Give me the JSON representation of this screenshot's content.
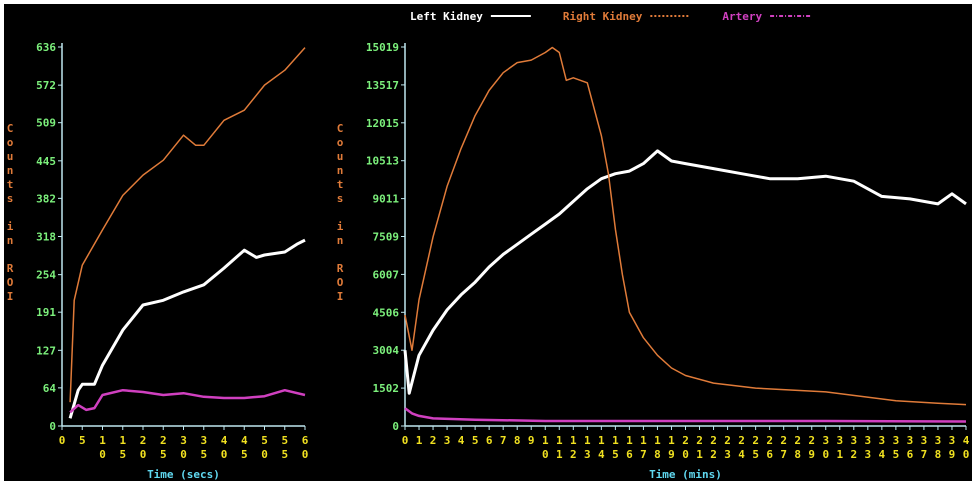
{
  "chart_data": [
    {
      "type": "line",
      "ylabel": "Counts in ROI",
      "xlabel": "Time (secs)",
      "ylim": [
        0,
        636
      ],
      "yticks": [
        0,
        64,
        127,
        191,
        254,
        318,
        382,
        445,
        509,
        572,
        636
      ],
      "xlim": [
        0,
        60
      ],
      "xticks": [
        0,
        5,
        10,
        15,
        20,
        25,
        30,
        35,
        40,
        45,
        50,
        55,
        60
      ],
      "series": [
        {
          "color": "#ffffff",
          "x": [
            2,
            4,
            5,
            8,
            10,
            15,
            20,
            25,
            30,
            35,
            40,
            45,
            48,
            50,
            55,
            58,
            60
          ],
          "values": [
            13,
            60,
            70,
            70,
            102,
            161,
            203,
            211,
            225,
            237,
            265,
            295,
            283,
            287,
            292,
            305,
            312
          ]
        },
        {
          "color": "#e07b39",
          "x": [
            2,
            3,
            5,
            10,
            15,
            20,
            25,
            30,
            33,
            35,
            40,
            45,
            50,
            55,
            60
          ],
          "values": [
            40,
            211,
            270,
            329,
            387,
            421,
            446,
            488,
            471,
            471,
            513,
            530,
            572,
            597,
            635
          ]
        },
        {
          "color": "#d040c0",
          "x": [
            2,
            4,
            6,
            8,
            10,
            15,
            20,
            25,
            30,
            35,
            40,
            45,
            50,
            55,
            60
          ],
          "values": [
            23,
            35,
            27,
            30,
            52,
            60,
            57,
            52,
            55,
            49,
            47,
            47,
            50,
            60,
            52
          ]
        }
      ]
    },
    {
      "type": "line",
      "ylabel": "Counts in ROI",
      "xlabel": "Time (mins)",
      "ylim": [
        0,
        15019
      ],
      "yticks": [
        0,
        1502,
        3004,
        4506,
        6007,
        7509,
        9011,
        10513,
        12015,
        13517,
        15019
      ],
      "xlim": [
        0,
        40
      ],
      "xticks": [
        0,
        1,
        2,
        3,
        4,
        5,
        6,
        7,
        8,
        9,
        10,
        11,
        12,
        13,
        14,
        15,
        16,
        17,
        18,
        19,
        20,
        21,
        22,
        23,
        24,
        25,
        26,
        27,
        28,
        29,
        30,
        31,
        32,
        33,
        34,
        35,
        36,
        37,
        38,
        39,
        40
      ],
      "legend": [
        {
          "name": "Left Kidney",
          "color": "#ffffff"
        },
        {
          "name": "Right Kidney",
          "color": "#e07b39"
        },
        {
          "name": "Artery",
          "color": "#d040c0"
        }
      ],
      "series": [
        {
          "color": "#ffffff",
          "x": [
            0,
            0.3,
            1,
            2,
            3,
            4,
            5,
            6,
            7,
            8,
            9,
            10,
            11,
            12,
            13,
            14,
            15,
            16,
            17,
            18,
            19,
            20,
            22,
            24,
            26,
            28,
            30,
            32,
            34,
            36,
            38,
            39,
            40
          ],
          "values": [
            3000,
            1300,
            2800,
            3800,
            4600,
            5200,
            5700,
            6300,
            6800,
            7200,
            7600,
            8000,
            8400,
            8900,
            9400,
            9800,
            10000,
            10100,
            10400,
            10900,
            10500,
            10400,
            10200,
            10000,
            9800,
            9800,
            9900,
            9700,
            9100,
            9000,
            8800,
            9200,
            8800
          ]
        },
        {
          "color": "#e07b39",
          "x": [
            0,
            0.5,
            1,
            2,
            3,
            4,
            5,
            6,
            7,
            8,
            9,
            10,
            10.5,
            11,
            11.5,
            12,
            13,
            14,
            14.5,
            15,
            15.5,
            16,
            17,
            18,
            19,
            20,
            22,
            25,
            30,
            35,
            38,
            40
          ],
          "values": [
            4400,
            3000,
            5000,
            7500,
            9500,
            11000,
            12300,
            13300,
            14000,
            14400,
            14500,
            14800,
            15000,
            14800,
            13700,
            13800,
            13600,
            11500,
            10000,
            7800,
            6000,
            4500,
            3500,
            2800,
            2300,
            2000,
            1700,
            1500,
            1350,
            1000,
            900,
            850
          ]
        },
        {
          "color": "#d040c0",
          "x": [
            0,
            0.5,
            1,
            2,
            5,
            10,
            20,
            30,
            40
          ],
          "values": [
            700,
            500,
            400,
            300,
            250,
            200,
            200,
            200,
            180
          ]
        }
      ]
    }
  ]
}
